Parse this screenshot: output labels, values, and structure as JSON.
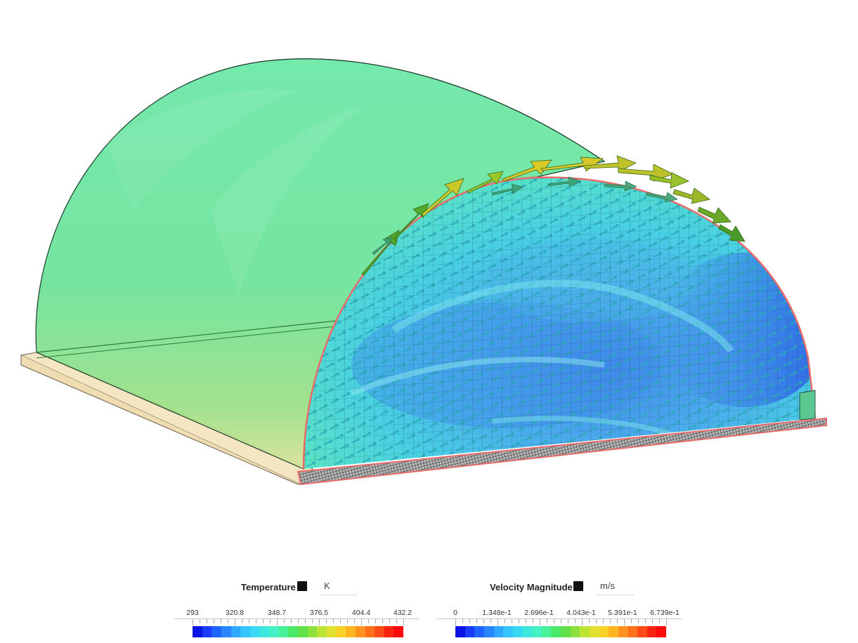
{
  "legends": [
    {
      "title": "Temperature",
      "unit": "K",
      "ticks": [
        "293",
        "320.8",
        "348.7",
        "376.5",
        "404.4",
        "432.2"
      ]
    },
    {
      "title": "Velocity Magnitude",
      "unit": "m/s",
      "ticks": [
        "0",
        "1.348e-1",
        "2.696e-1",
        "4.043e-1",
        "5.391e-1",
        "6.739e-1"
      ]
    }
  ],
  "colormap": [
    "#0a14e6",
    "#1a3cff",
    "#2064ff",
    "#2a86ff",
    "#30a8ff",
    "#36c4ff",
    "#3ad8f4",
    "#3ee8e0",
    "#44f0c4",
    "#48f098",
    "#4ce86a",
    "#62e04a",
    "#8ee03c",
    "#bce436",
    "#e2e030",
    "#f8d028",
    "#ffb422",
    "#ff921e",
    "#ff701a",
    "#ff4c16",
    "#ff2412",
    "#ff0a0e"
  ],
  "icons": {
    "legend_swatch": "black-square-icon"
  }
}
